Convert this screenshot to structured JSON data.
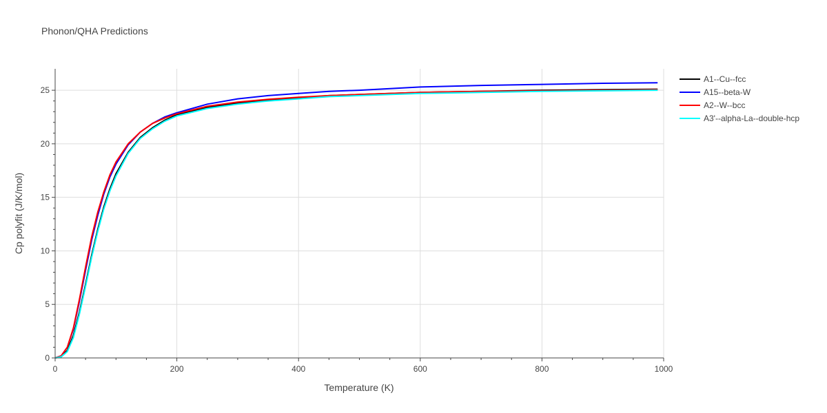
{
  "chart_data": {
    "type": "line",
    "title": "Phonon/QHA Predictions",
    "xlabel": "Temperature (K)",
    "ylabel": "Cp polyfit (J/K/mol)",
    "xlim": [
      0,
      1000
    ],
    "ylim": [
      0,
      27
    ],
    "xticks": [
      0,
      200,
      400,
      600,
      800,
      1000
    ],
    "yticks": [
      0,
      5,
      10,
      15,
      20,
      25
    ],
    "grid": true,
    "legend_position": "top-right",
    "x": [
      0,
      10,
      20,
      30,
      40,
      50,
      60,
      70,
      80,
      90,
      100,
      120,
      140,
      160,
      180,
      200,
      250,
      300,
      350,
      400,
      450,
      500,
      600,
      700,
      800,
      900,
      990
    ],
    "series": [
      {
        "name": "A1--Cu--fcc",
        "color": "#000000",
        "values": [
          0,
          0.1,
          0.7,
          2.1,
          4.3,
          6.9,
          9.6,
          12.0,
          14.1,
          15.8,
          17.2,
          19.2,
          20.6,
          21.5,
          22.2,
          22.7,
          23.4,
          23.8,
          24.1,
          24.3,
          24.5,
          24.6,
          24.8,
          24.9,
          25.0,
          25.05,
          25.1
        ]
      },
      {
        "name": "A15--beta-W",
        "color": "#0000ff",
        "values": [
          0,
          0.2,
          1.0,
          2.7,
          5.3,
          8.2,
          11.0,
          13.3,
          15.3,
          16.9,
          18.1,
          19.9,
          21.1,
          21.9,
          22.5,
          22.9,
          23.7,
          24.2,
          24.5,
          24.7,
          24.9,
          25.0,
          25.3,
          25.45,
          25.55,
          25.65,
          25.7
        ]
      },
      {
        "name": "A2--W--bcc",
        "color": "#ff0000",
        "values": [
          0,
          0.2,
          1.0,
          2.8,
          5.5,
          8.5,
          11.3,
          13.6,
          15.5,
          17.1,
          18.3,
          20.0,
          21.1,
          21.9,
          22.4,
          22.8,
          23.5,
          23.9,
          24.15,
          24.35,
          24.5,
          24.6,
          24.8,
          24.9,
          24.95,
          25.0,
          25.05
        ]
      },
      {
        "name": "A3'--alpha-La--double-hcp",
        "color": "#00ffff",
        "values": [
          0,
          0.1,
          0.6,
          1.9,
          4.1,
          6.7,
          9.4,
          11.8,
          13.9,
          15.6,
          17.0,
          19.1,
          20.5,
          21.4,
          22.1,
          22.6,
          23.3,
          23.7,
          24.0,
          24.2,
          24.4,
          24.5,
          24.7,
          24.8,
          24.9,
          24.95,
          25.0
        ]
      }
    ]
  }
}
